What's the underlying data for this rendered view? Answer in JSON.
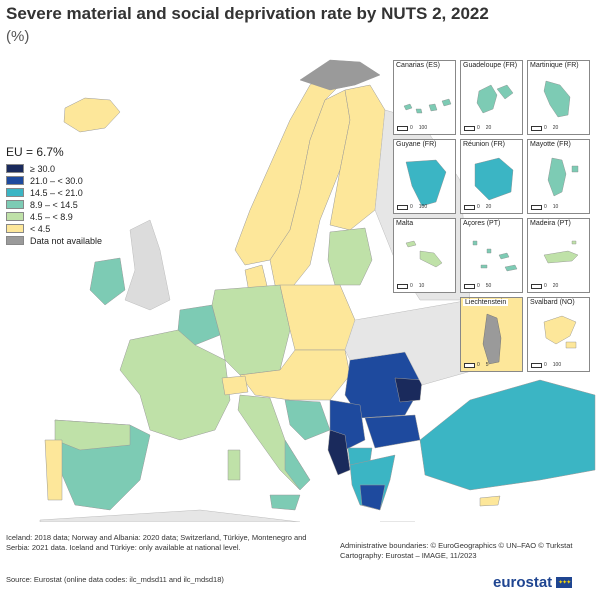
{
  "header": {
    "title": "Severe material and social deprivation rate by NUTS 2, 2022",
    "subtitle": "(%)"
  },
  "legend": {
    "title": "EU = 6.7%",
    "items": [
      {
        "label": "≥ 30.0",
        "color": "#1a2a5c"
      },
      {
        "label": "21.0 – < 30.0",
        "color": "#1e4a9e"
      },
      {
        "label": "14.5 – < 21.0",
        "color": "#3bb5c4"
      },
      {
        "label": "8.9 – < 14.5",
        "color": "#7dcbb4"
      },
      {
        "label": "4.5 – < 8.9",
        "color": "#bfe1a8"
      },
      {
        "label": "< 4.5",
        "color": "#fde79a"
      },
      {
        "label": "Data not available",
        "color": "#9a9a9a"
      }
    ]
  },
  "insets": [
    {
      "label": "Canarias (ES)",
      "scale": [
        "0",
        "100"
      ]
    },
    {
      "label": "Guadeloupe (FR)",
      "scale": [
        "0",
        "20"
      ]
    },
    {
      "label": "Martinique (FR)",
      "scale": [
        "0",
        "20"
      ]
    },
    {
      "label": "Guyane (FR)",
      "scale": [
        "0",
        "100"
      ]
    },
    {
      "label": "Réunion (FR)",
      "scale": [
        "0",
        "20"
      ]
    },
    {
      "label": "Mayotte (FR)",
      "scale": [
        "0",
        "10"
      ]
    },
    {
      "label": "Malta",
      "scale": [
        "0",
        "10"
      ]
    },
    {
      "label": "Açores (PT)",
      "scale": [
        "0",
        "50"
      ]
    },
    {
      "label": "Madeira (PT)",
      "scale": [
        "0",
        "20"
      ]
    },
    {
      "label": "Liechtenstein",
      "scale": [
        "0",
        "5"
      ]
    },
    {
      "label": "Svalbard (NO)",
      "scale": [
        "0",
        "100"
      ]
    }
  ],
  "footer": {
    "note": "Iceland: 2018 data; Norway and Albania: 2020 data; Switzerland, Türkiye, Montenegro and Serbia: 2021 data. Iceland and Türkiye: only available at national level.",
    "source": "Source: Eurostat (online data codes: ilc_mdsd11 and ilc_mdsd18)",
    "admin_line1": "Administrative boundaries: © EuroGeographics © UN–FAO © Turkstat",
    "admin_line2": "Cartography: Eurostat – IMAGE, 11/2023",
    "logo": "eurostat"
  }
}
